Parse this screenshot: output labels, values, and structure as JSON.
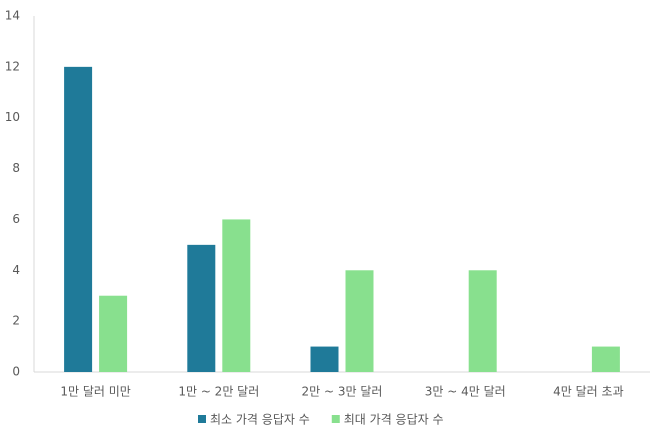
{
  "chart_data": {
    "type": "bar",
    "categories": [
      "1만 달러 미만",
      "1만 ~ 2만 달러",
      "2만 ~ 3만 달러",
      "3만 ~ 4만 달러",
      "4만 달러 초과"
    ],
    "series": [
      {
        "name": "최소 가격 응답자 수",
        "color": "#1f7a99",
        "values": [
          12,
          5,
          1,
          0,
          0
        ]
      },
      {
        "name": "최대 가격 응답자 수",
        "color": "#88e08e",
        "values": [
          3,
          6,
          4,
          4,
          1
        ]
      }
    ],
    "ylim": [
      0,
      14
    ],
    "yticks": [
      0,
      2,
      4,
      6,
      8,
      10,
      12,
      14
    ],
    "grid": false,
    "legend": "bottom"
  }
}
